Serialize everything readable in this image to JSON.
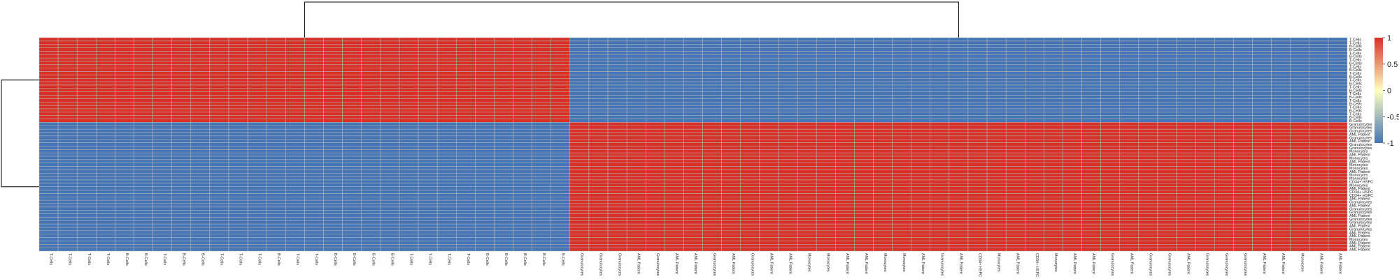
{
  "chart_data": {
    "type": "heatmap",
    "title": "",
    "xlabel": "",
    "ylabel": "",
    "value_range": [
      -1,
      1
    ],
    "colors": {
      "low": "#4575b4",
      "mid": "#ffffbf",
      "high": "#d73027",
      "cell_border": "#bcbcbc"
    },
    "grid": true,
    "dendrograms": [
      "top",
      "left"
    ],
    "legend": {
      "placement": "right",
      "ticks": [
        "1",
        "0.5",
        "0",
        "-0.5",
        "-1"
      ],
      "tick_values": [
        1,
        0.5,
        0,
        -0.5,
        -1
      ]
    },
    "columns": [
      "T-Cells",
      "T-Cells",
      "T-Cells",
      "T-Cells",
      "B-Cells",
      "B-Cells",
      "T-Cells",
      "B-Cells",
      "B-Cells",
      "T-Cells",
      "T-Cells",
      "T-Cells",
      "B-Cells",
      "T-Cells",
      "T-Cells",
      "B-Cells",
      "B-Cells",
      "B-Cells",
      "B-Cells",
      "T-Cells",
      "T-Cells",
      "T-Cells",
      "T-Cells",
      "B-Cells",
      "B-Cells",
      "B-Cells",
      "B-Cells",
      "B-Cells",
      "Granulocytes",
      "Granulocytes",
      "Granulocytes",
      "AML Patient",
      "Granulocytes",
      "AML Patient",
      "AML Patient",
      "Granulocytes",
      "AML Patient",
      "Granulocytes",
      "AML Patient",
      "AML Patient",
      "Monocytes",
      "Monocytes",
      "AML Patient",
      "AML Patient",
      "Monocytes",
      "Monocytes",
      "AML Patient",
      "Granulocytes",
      "AML Patient",
      "CD34+ HSPC",
      "Monocytes",
      "AML Patient",
      "CD34+ HSPC",
      "Monocytes",
      "AML Patient",
      "AML Patient",
      "Granulocytes",
      "AML Patient",
      "Granulocytes",
      "Granulocytes",
      "AML Patient",
      "Granulocytes",
      "Granulocytes",
      "Granulocytes",
      "AML Patient",
      "AML Patient",
      "Monocytes",
      "AML Patient",
      "AML Patient"
    ],
    "rows": [
      "T-Cells",
      "T-Cells",
      "B-Cells",
      "B-Cells",
      "T-Cells",
      "B-Cells",
      "T-Cells",
      "B-Cells",
      "T-Cells",
      "B-Cells",
      "T-Cells",
      "B-Cells",
      "T-Cells",
      "B-Cells",
      "T-Cells",
      "B-Cells",
      "T-Cells",
      "B-Cells",
      "T-Cells",
      "B-Cells",
      "T-Cells",
      "B-Cells",
      "T-Cells",
      "B-Cells",
      "B-Cells",
      "Granulocytes",
      "Granulocytes",
      "Granulocytes",
      "AML Patient",
      "Granulocytes",
      "AML Patient",
      "Granulocytes",
      "Granulocytes",
      "Monocytes",
      "AML Patient",
      "Monocytes",
      "AML Patient",
      "Monocytes",
      "Monocytes",
      "AML Patient",
      "Monocytes",
      "Monocytes",
      "CD34+ HSPC",
      "Monocytes",
      "AML Patient",
      "CD34+ HSPC",
      "CD34+ HSPC",
      "AML Patient",
      "Granulocytes",
      "AML Patient",
      "Granulocytes",
      "Granulocytes",
      "AML Patient",
      "Granulocytes",
      "Granulocytes",
      "AML Patient",
      "Granulocytes",
      "AML Patient",
      "AML Patient",
      "Monocytes",
      "AML Patient",
      "AML Patient",
      "AML Patient"
    ],
    "cluster_blocks": {
      "column_split_after": 28,
      "row_split_after": 25,
      "same_group_value": 1,
      "other_group_value": -1
    }
  }
}
